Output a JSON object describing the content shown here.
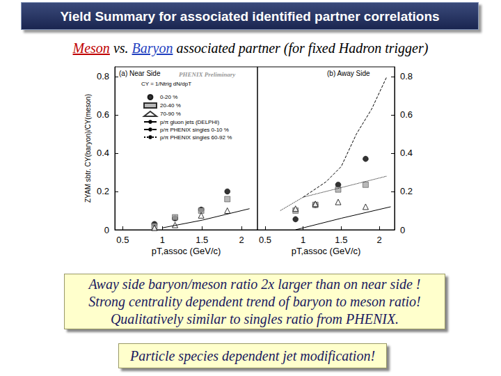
{
  "slide": {
    "title": "Yield Summary for associated identified partner correlations",
    "subtitle": [
      {
        "text": "Meson",
        "color": "#c00000"
      },
      {
        "text": " vs. "
      },
      {
        "text": "Baryon",
        "color": "#1f3fbf"
      },
      {
        "text": " associated partner (for fixed Hadron trigger)"
      }
    ],
    "summary": [
      "Away side baryon/meson ratio 2x larger than on near side !",
      "Strong centrality dependent trend of baryon to meson ratio!",
      "Qualitatively similar to singles ratio from PHENIX."
    ],
    "conclusion": "Particle species dependent jet modification!"
  },
  "chart_data": [
    {
      "type": "scatter",
      "title": "(a) Near Side",
      "annotations": [
        "PHENIX Preliminary",
        "CY = 1/Ntrig dN/dpT"
      ],
      "x_label": "pT,assoc (GeV/c)",
      "y_label": "ZYAM sbtr. CY(baryon)/CY(meson)",
      "xlim": [
        0.4,
        2.2
      ],
      "xticks": [
        0.5,
        1,
        1.5,
        2
      ],
      "ylim": [
        0,
        0.85
      ],
      "yticks": [
        0,
        0.2,
        0.4,
        0.6,
        0.8
      ],
      "legend": "upper left",
      "series": [
        {
          "name": "0-20 %",
          "type": "scatter",
          "marker": "circle",
          "color": "#000000",
          "x": [
            0.9,
            1.16,
            1.49,
            1.82
          ],
          "values": [
            0.03,
            0.06,
            0.105,
            0.2
          ]
        },
        {
          "name": "20-40 %",
          "type": "scatter",
          "marker": "square",
          "color": "#a8a8a8",
          "x": [
            0.9,
            1.16,
            1.49,
            1.82
          ],
          "values": [
            0.02,
            0.065,
            0.1,
            0.16
          ]
        },
        {
          "name": "70-90 %",
          "type": "scatter",
          "marker": "open_triangle",
          "color": "#000000",
          "x": [
            0.9,
            1.16,
            1.49,
            1.82
          ],
          "values": [
            0.01,
            0.025,
            0.075,
            0.1
          ]
        },
        {
          "name": "p/π gluon jets (DELPHI)",
          "type": "line",
          "line_style": "solid",
          "color": "#000000",
          "x": [
            1.0,
            1.5,
            2.1
          ],
          "values": [
            0.01,
            0.05,
            0.11
          ]
        }
      ]
    },
    {
      "type": "scatter",
      "title": "(b) Away Side",
      "x_label": "pT,assoc (GeV/c)",
      "xlim": [
        0.4,
        2.2
      ],
      "xticks": [
        0.5,
        1,
        1.5,
        2
      ],
      "ylim": [
        0,
        0.85
      ],
      "yticks": [
        0,
        0.2,
        0.4,
        0.6,
        0.8
      ],
      "series": [
        {
          "name": "0-20 %",
          "type": "scatter",
          "marker": "circle",
          "color": "#000000",
          "x": [
            0.9,
            1.16,
            1.46,
            1.82
          ],
          "values": [
            0.055,
            0.13,
            0.235,
            0.37
          ]
        },
        {
          "name": "20-40 %",
          "type": "scatter",
          "marker": "square",
          "color": "#a8a8a8",
          "x": [
            0.9,
            1.16,
            1.46,
            1.82
          ],
          "values": [
            0.1,
            0.13,
            0.21,
            0.235
          ]
        },
        {
          "name": "70-90 %",
          "type": "scatter",
          "marker": "open_triangle",
          "color": "#000000",
          "x": [
            0.9,
            1.16,
            1.46,
            1.82
          ],
          "values": [
            0.11,
            0.135,
            0.145,
            0.12
          ]
        },
        {
          "name": "p/π gluon jets (DELPHI)",
          "type": "line",
          "line_style": "solid",
          "color": "#000000",
          "x": [
            0.9,
            1.5,
            2.15
          ],
          "values": [
            0.0,
            0.06,
            0.12
          ]
        },
        {
          "name": "p/π PHENIX singles 0-10 %",
          "type": "line",
          "line_style": "dashed",
          "color": "#000000",
          "x": [
            1.0,
            1.3,
            1.5,
            1.7,
            1.9,
            2.1
          ],
          "values": [
            0.17,
            0.25,
            0.33,
            0.5,
            0.63,
            0.8
          ]
        },
        {
          "name": "p/π PHENIX singles 60-92 %",
          "type": "line",
          "line_style": "dotted",
          "color": "#000000",
          "x": [
            0.7,
            1.0,
            1.5,
            2.1
          ],
          "values": [
            0.1,
            0.17,
            0.22,
            0.28
          ]
        }
      ]
    }
  ]
}
